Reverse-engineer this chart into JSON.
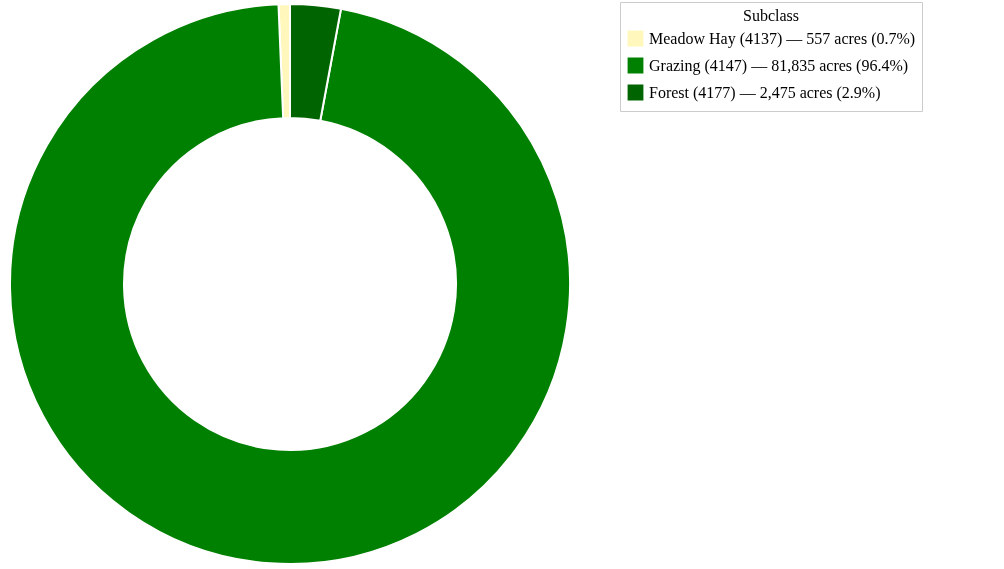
{
  "chart_data": {
    "type": "donut",
    "legend_title": "Subclass",
    "legend": "right",
    "categories": [
      "Meadow Hay (4137) — 557 acres (0.7%)",
      "Grazing (4147) — 81,835 acres (96.4%)",
      "Forest (4177) — 2,475 acres (2.9%)"
    ],
    "values": [
      557,
      81835,
      2475
    ],
    "colors": [
      "#fff7bc",
      "#008000",
      "#006400"
    ]
  }
}
